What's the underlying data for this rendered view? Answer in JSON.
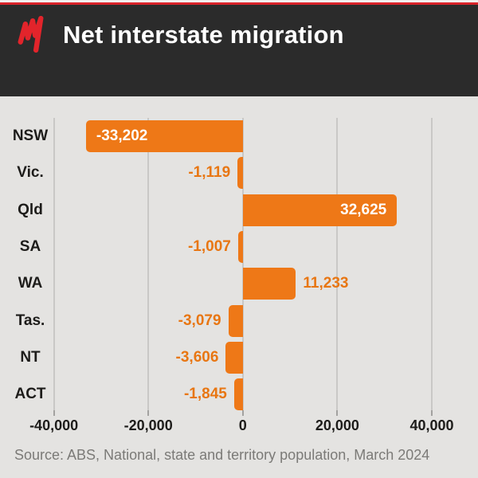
{
  "header": {
    "title": "Net interstate migration"
  },
  "footer": {
    "source": "Source: ABS, National, state and territory population, March 2024"
  },
  "colors": {
    "header_bg": "#2b2b2b",
    "stripe_red": "#d8232a",
    "page_bg": "#e4e3e1",
    "bar": "#ee7817",
    "value_label_inside": "#ffffff",
    "value_label_outside": "#e87612",
    "grid": "#c9c8c6",
    "tick": "#a3a2a0",
    "axis_text": "#1d1c1a",
    "source_text": "#7b7a77",
    "logo_red": "#e2242b",
    "title_text": "#ffffff"
  },
  "chart_data": {
    "type": "bar",
    "orientation": "horizontal",
    "title": "Net interstate migration",
    "categories": [
      "NSW",
      "Vic.",
      "Qld",
      "SA",
      "WA",
      "Tas.",
      "NT",
      "ACT"
    ],
    "values": [
      -33202,
      -1119,
      32625,
      -1007,
      11233,
      -3079,
      -3606,
      -1845
    ],
    "value_labels": [
      "-33,202",
      "-1,119",
      "32,625",
      "-1,007",
      "11,233",
      "-3,079",
      "-3,606",
      "-1,845"
    ],
    "xlim": [
      -40000,
      40000
    ],
    "x_ticks": [
      -40000,
      -20000,
      0,
      20000,
      40000
    ],
    "x_tick_labels": [
      "-40,000",
      "-20,000",
      "0",
      "20,000",
      "40,000"
    ],
    "grid": true,
    "legend": false,
    "source": "Source: ABS, National, state and territory population, March 2024"
  }
}
